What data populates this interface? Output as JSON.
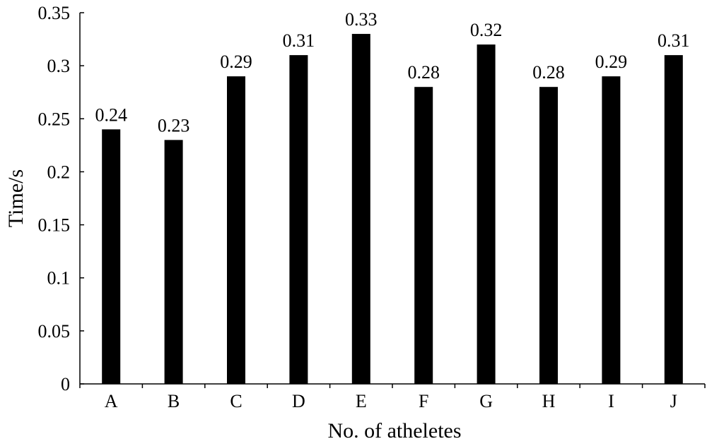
{
  "chart_data": {
    "type": "bar",
    "title": "",
    "xlabel": "No. of atheletes",
    "ylabel": "Time/s",
    "categories": [
      "A",
      "B",
      "C",
      "D",
      "E",
      "F",
      "G",
      "H",
      "I",
      "J"
    ],
    "values": [
      0.24,
      0.23,
      0.29,
      0.31,
      0.33,
      0.28,
      0.32,
      0.28,
      0.29,
      0.31
    ],
    "data_labels": [
      "0.24",
      "0.23",
      "0.29",
      "0.31",
      "0.33",
      "0.28",
      "0.32",
      "0.28",
      "0.29",
      "0.31"
    ],
    "ylim": [
      0,
      0.35
    ],
    "yticks": [
      0,
      0.05,
      0.1,
      0.15,
      0.2,
      0.25,
      0.3,
      0.35
    ],
    "ytick_labels": [
      "0",
      "0.05",
      "0.1",
      "0.15",
      "0.2",
      "0.25",
      "0.3",
      "0.35"
    ],
    "grid": false,
    "legend": "none",
    "bar_color": "#000000"
  }
}
